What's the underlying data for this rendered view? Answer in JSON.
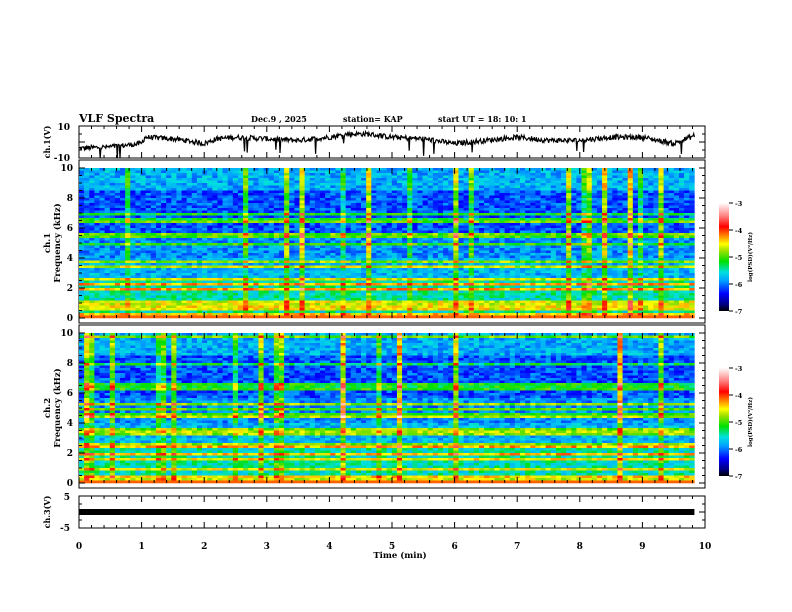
{
  "header": {
    "title": "VLF Spectra",
    "date": "Dec.9  , 2025",
    "station": "station= KAP",
    "start": "start  UT =   18: 10: 1"
  },
  "chart_data": [
    {
      "type": "line",
      "name": "ch1-waveform",
      "ylabel": "ch.1(V)",
      "ylim": [
        -10,
        10
      ],
      "ytick_labels": [
        "10",
        "-10"
      ],
      "xlim": [
        0,
        10
      ],
      "x_end": 9.83,
      "baseline_profile": {
        "x": [
          0,
          0.5,
          1.0,
          1.05,
          1.5,
          1.7,
          2.0,
          2.2,
          2.5,
          3.0,
          3.5,
          4.0,
          4.3,
          4.6,
          5.0,
          5.5,
          6.0,
          6.5,
          7.0,
          7.5,
          8.0,
          8.5,
          9.0,
          9.5,
          9.83
        ],
        "y": [
          -4,
          -3,
          -1,
          3,
          2,
          1,
          -1,
          2,
          3,
          2,
          1,
          3,
          5,
          5,
          3,
          2,
          -1,
          1,
          3,
          1,
          1,
          3,
          3,
          -1,
          4
        ]
      },
      "color": "#000000"
    },
    {
      "type": "heatmap",
      "name": "ch1-spectrogram",
      "ylabel": "ch.1\nFrequency (kHz)",
      "ylabel_line1": "ch.1",
      "ylabel_line2": "Frequency  (kHz)",
      "ylim": [
        0,
        10
      ],
      "ytick_labels": [
        "0",
        "2",
        "4",
        "6",
        "8",
        "10"
      ],
      "xlim": [
        0,
        10
      ],
      "x_end": 9.83,
      "colorbar": {
        "label": "log(PSD)(V²/Hz)",
        "range": [
          -7,
          -3
        ],
        "tick_labels": [
          "-3",
          "-4",
          "-5",
          "-6",
          "-7"
        ]
      },
      "bright_lines_khz": [
        0.25,
        0.6,
        0.85,
        1.0,
        1.9,
        2.3,
        2.55,
        3.35,
        3.7,
        3.8,
        4.9,
        5.4,
        5.5,
        6.5,
        6.9
      ]
    },
    {
      "type": "heatmap",
      "name": "ch2-spectrogram",
      "ylabel_line1": "ch.2",
      "ylabel_line2": "Frequency  (kHz)",
      "ylim": [
        0,
        10
      ],
      "ytick_labels": [
        "0",
        "2",
        "4",
        "6",
        "8",
        "10"
      ],
      "xlim": [
        0,
        10
      ],
      "x_end": 9.83,
      "colorbar": {
        "label": "log(PSD)(V²/Hz)",
        "range": [
          -7,
          -3
        ],
        "tick_labels": [
          "-3",
          "-4",
          "-5",
          "-6",
          "-7"
        ]
      },
      "bright_lines_khz": [
        0.3,
        0.45,
        0.9,
        1.6,
        1.9,
        2.5,
        3.2,
        3.4,
        3.6,
        4.5,
        4.9,
        5.2,
        6.3,
        6.5,
        7.9,
        9.7
      ]
    },
    {
      "type": "line",
      "name": "ch3-waveform",
      "ylabel": "ch.3(V)",
      "ylim": [
        -5,
        5
      ],
      "ytick_labels": [
        "5",
        "-5"
      ],
      "xlim": [
        0,
        10
      ],
      "x_end": 9.83,
      "value": 0,
      "xlabel": "Time  (min)",
      "xtick_labels": [
        "0",
        "1",
        "2",
        "3",
        "4",
        "5",
        "6",
        "7",
        "8",
        "9",
        "10"
      ]
    }
  ]
}
